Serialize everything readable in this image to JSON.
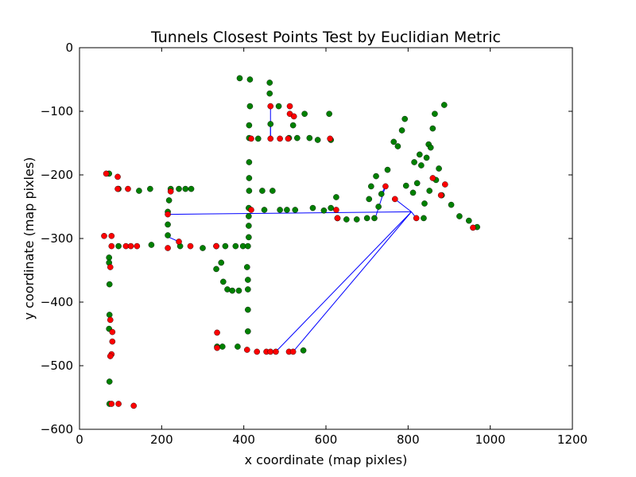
{
  "chart_data": {
    "type": "scatter",
    "title": "Tunnels Closest Points Test by Euclidian Metric",
    "xlabel": "x coordinate (map pixles)",
    "ylabel": "y coordinate (map pixles)",
    "xlim": [
      0,
      1200
    ],
    "ylim": [
      -600,
      0
    ],
    "x_ticks": [
      "0",
      "200",
      "400",
      "600",
      "800",
      "1000",
      "1200"
    ],
    "y_ticks": [
      "0",
      "−100",
      "−200",
      "−300",
      "−400",
      "−500",
      "−600"
    ],
    "grid": false,
    "colors": {
      "green_points": "#008000",
      "red_points": "#ff0000",
      "lines": "#0000ff"
    },
    "series": [
      {
        "color": "green",
        "points": [
          [
            72,
            -198
          ],
          [
            72,
            -330
          ],
          [
            72,
            -338
          ],
          [
            73,
            -372
          ],
          [
            73,
            -420
          ],
          [
            72,
            -442
          ],
          [
            73,
            -525
          ],
          [
            73,
            -560
          ],
          [
            95,
            -222
          ],
          [
            95,
            -312
          ],
          [
            145,
            -225
          ],
          [
            172,
            -222
          ],
          [
            175,
            -310
          ],
          [
            222,
            -222
          ],
          [
            218,
            -240
          ],
          [
            215,
            -258
          ],
          [
            215,
            -278
          ],
          [
            215,
            -295
          ],
          [
            242,
            -222
          ],
          [
            258,
            -222
          ],
          [
            272,
            -222
          ],
          [
            245,
            -312
          ],
          [
            300,
            -315
          ],
          [
            333,
            -312
          ],
          [
            333,
            -348
          ],
          [
            345,
            -338
          ],
          [
            350,
            -368
          ],
          [
            355,
            -312
          ],
          [
            360,
            -380
          ],
          [
            372,
            -382
          ],
          [
            380,
            -312
          ],
          [
            385,
            -470
          ],
          [
            390,
            -48
          ],
          [
            388,
            -382
          ],
          [
            398,
            -312
          ],
          [
            410,
            -312
          ],
          [
            410,
            -365
          ],
          [
            410,
            -412
          ],
          [
            410,
            -446
          ],
          [
            415,
            -50
          ],
          [
            415,
            -92
          ],
          [
            413,
            -122
          ],
          [
            413,
            -142
          ],
          [
            413,
            -180
          ],
          [
            413,
            -205
          ],
          [
            413,
            -225
          ],
          [
            412,
            -252
          ],
          [
            412,
            -265
          ],
          [
            412,
            -280
          ],
          [
            412,
            -298
          ],
          [
            408,
            -345
          ],
          [
            410,
            -380
          ],
          [
            348,
            -470
          ],
          [
            335,
            -470
          ],
          [
            435,
            -143
          ],
          [
            445,
            -225
          ],
          [
            450,
            -255
          ],
          [
            463,
            -55
          ],
          [
            463,
            -72
          ],
          [
            465,
            -120
          ],
          [
            470,
            -225
          ],
          [
            485,
            -92
          ],
          [
            488,
            -255
          ],
          [
            505,
            -255
          ],
          [
            510,
            -142
          ],
          [
            520,
            -122
          ],
          [
            525,
            -255
          ],
          [
            545,
            -476
          ],
          [
            530,
            -142
          ],
          [
            548,
            -104
          ],
          [
            560,
            -142
          ],
          [
            568,
            -252
          ],
          [
            580,
            -145
          ],
          [
            595,
            -256
          ],
          [
            608,
            -104
          ],
          [
            612,
            -145
          ],
          [
            612,
            -252
          ],
          [
            625,
            -235
          ],
          [
            628,
            -268
          ],
          [
            650,
            -270
          ],
          [
            675,
            -270
          ],
          [
            700,
            -268
          ],
          [
            705,
            -238
          ],
          [
            710,
            -218
          ],
          [
            718,
            -268
          ],
          [
            722,
            -202
          ],
          [
            728,
            -250
          ],
          [
            735,
            -230
          ],
          [
            750,
            -192
          ],
          [
            765,
            -148
          ],
          [
            775,
            -155
          ],
          [
            785,
            -130
          ],
          [
            792,
            -112
          ],
          [
            795,
            -217
          ],
          [
            812,
            -228
          ],
          [
            815,
            -180
          ],
          [
            822,
            -213
          ],
          [
            828,
            -168
          ],
          [
            832,
            -185
          ],
          [
            838,
            -268
          ],
          [
            840,
            -245
          ],
          [
            845,
            -173
          ],
          [
            850,
            -152
          ],
          [
            852,
            -225
          ],
          [
            855,
            -157
          ],
          [
            860,
            -127
          ],
          [
            865,
            -104
          ],
          [
            868,
            -208
          ],
          [
            875,
            -190
          ],
          [
            882,
            -232
          ],
          [
            888,
            -90
          ],
          [
            905,
            -247
          ],
          [
            925,
            -265
          ],
          [
            948,
            -272
          ],
          [
            968,
            -282
          ]
        ]
      },
      {
        "color": "red",
        "points": [
          [
            65,
            -198
          ],
          [
            93,
            -203
          ],
          [
            93,
            -222
          ],
          [
            118,
            -222
          ],
          [
            60,
            -296
          ],
          [
            78,
            -296
          ],
          [
            78,
            -312
          ],
          [
            113,
            -312
          ],
          [
            125,
            -312
          ],
          [
            140,
            -312
          ],
          [
            75,
            -345
          ],
          [
            75,
            -428
          ],
          [
            80,
            -447
          ],
          [
            80,
            -462
          ],
          [
            78,
            -482
          ],
          [
            75,
            -485
          ],
          [
            78,
            -560
          ],
          [
            95,
            -560
          ],
          [
            132,
            -563
          ],
          [
            215,
            -262
          ],
          [
            222,
            -226
          ],
          [
            242,
            -305
          ],
          [
            215,
            -315
          ],
          [
            270,
            -312
          ],
          [
            333,
            -312
          ],
          [
            335,
            -448
          ],
          [
            335,
            -472
          ],
          [
            408,
            -475
          ],
          [
            432,
            -478
          ],
          [
            455,
            -478
          ],
          [
            465,
            -478
          ],
          [
            478,
            -478
          ],
          [
            510,
            -478
          ],
          [
            520,
            -478
          ],
          [
            465,
            -92
          ],
          [
            465,
            -143
          ],
          [
            512,
            -92
          ],
          [
            512,
            -104
          ],
          [
            522,
            -108
          ],
          [
            418,
            -143
          ],
          [
            418,
            -255
          ],
          [
            488,
            -143
          ],
          [
            508,
            -143
          ],
          [
            610,
            -143
          ],
          [
            625,
            -255
          ],
          [
            628,
            -268
          ],
          [
            745,
            -218
          ],
          [
            768,
            -238
          ],
          [
            820,
            -268
          ],
          [
            860,
            -205
          ],
          [
            880,
            -232
          ],
          [
            890,
            -215
          ],
          [
            958,
            -283
          ]
        ]
      },
      {
        "color": "blue",
        "lines": [
          [
            [
              218,
              -262
            ],
            [
              808,
              -258
            ]
          ],
          [
            [
              218,
              -298
            ],
            [
              242,
              -305
            ]
          ],
          [
            [
              465,
              -92
            ],
            [
              465,
              -143
            ]
          ],
          [
            [
              465,
              -120
            ],
            [
              465,
              -143
            ]
          ],
          [
            [
              478,
              -478
            ],
            [
              808,
              -258
            ]
          ],
          [
            [
              520,
              -478
            ],
            [
              808,
              -258
            ]
          ],
          [
            [
              720,
              -268
            ],
            [
              745,
              -218
            ]
          ],
          [
            [
              768,
              -238
            ],
            [
              808,
              -258
            ]
          ],
          [
            [
              808,
              -258
            ],
            [
              820,
              -268
            ]
          ],
          [
            [
              745,
              -218
            ],
            [
              735,
              -230
            ]
          ]
        ]
      }
    ]
  }
}
